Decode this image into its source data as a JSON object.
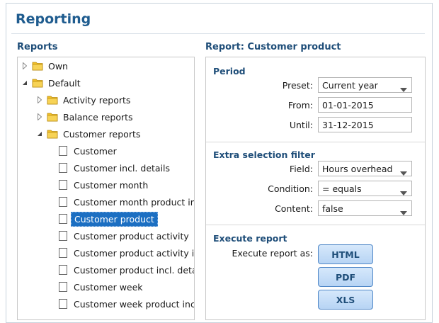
{
  "app": {
    "title": "Reporting"
  },
  "reports_section": {
    "label": "Reports",
    "tree": [
      {
        "label": "Own",
        "type": "folder",
        "level": 0,
        "expanded": false
      },
      {
        "label": "Default",
        "type": "folder",
        "level": 0,
        "expanded": true
      },
      {
        "label": "Activity reports",
        "type": "folder",
        "level": 1,
        "expanded": false
      },
      {
        "label": "Balance reports",
        "type": "folder",
        "level": 1,
        "expanded": false
      },
      {
        "label": "Customer reports",
        "type": "folder",
        "level": 1,
        "expanded": true
      },
      {
        "label": "Customer",
        "type": "report",
        "level": 2
      },
      {
        "label": "Customer incl. details",
        "type": "report",
        "level": 2
      },
      {
        "label": "Customer month",
        "type": "report",
        "level": 2
      },
      {
        "label": "Customer month product in",
        "type": "report",
        "level": 2
      },
      {
        "label": "Customer product",
        "type": "report",
        "level": 2,
        "selected": true
      },
      {
        "label": "Customer product activity",
        "type": "report",
        "level": 2
      },
      {
        "label": "Customer product activity in",
        "type": "report",
        "level": 2
      },
      {
        "label": "Customer product incl. deta",
        "type": "report",
        "level": 2
      },
      {
        "label": "Customer week",
        "type": "report",
        "level": 2
      },
      {
        "label": "Customer week product incl",
        "type": "report",
        "level": 2
      }
    ]
  },
  "report_panel": {
    "header": "Report: Customer product",
    "period": {
      "title": "Period",
      "preset_label": "Preset:",
      "preset_value": "Current year",
      "from_label": "From:",
      "from_value": "01-01-2015",
      "until_label": "Until:",
      "until_value": "31-12-2015"
    },
    "filter": {
      "title": "Extra selection filter",
      "field_label": "Field:",
      "field_value": "Hours overhead",
      "condition_label": "Condition:",
      "condition_value": "= equals",
      "content_label": "Content:",
      "content_value": "false"
    },
    "execute": {
      "title": "Execute report",
      "as_label": "Execute report as:",
      "html_label": "HTML",
      "pdf_label": "PDF",
      "xls_label": "XLS"
    }
  },
  "colors": {
    "accent": "#1f5c8f",
    "selection": "#1c6fc2",
    "button_border": "#4f87c7",
    "folder": "#f2c027"
  },
  "icons": {
    "folder": "folder-icon",
    "report": "report-doc-icon",
    "expand": "triangle-right-icon",
    "collapse": "triangle-down-icon",
    "dropdown": "chevron-down-icon"
  }
}
